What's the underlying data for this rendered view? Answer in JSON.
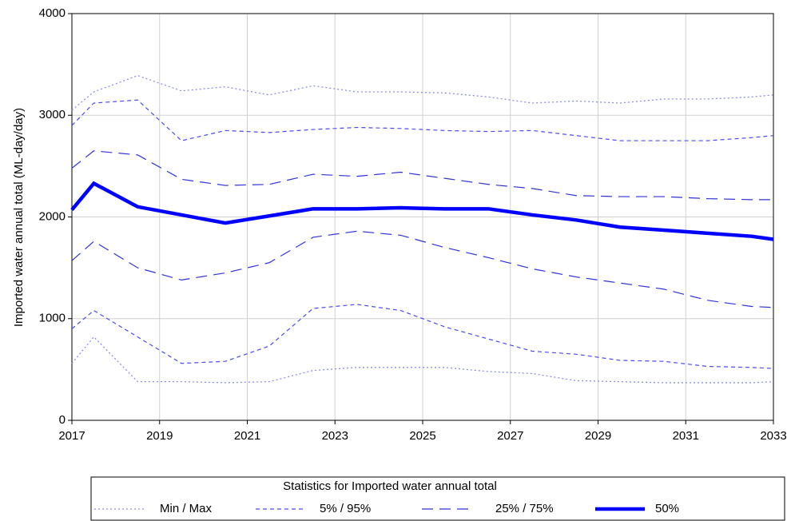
{
  "chart_data": {
    "type": "line",
    "y_label": "Imported water annual total (ML-day/day)",
    "legend_title": "Statistics for Imported water annual total",
    "x": [
      2017,
      2017.5,
      2018.5,
      2019.5,
      2020.5,
      2021.5,
      2022.5,
      2023.5,
      2024.5,
      2025.5,
      2026.5,
      2027.5,
      2028.5,
      2029.5,
      2030.5,
      2031.5,
      2032.5,
      2033
    ],
    "xlim": [
      2017,
      2033
    ],
    "xticks": [
      2017,
      2019,
      2021,
      2023,
      2025,
      2027,
      2029,
      2031,
      2033
    ],
    "ylim": [
      0,
      4000
    ],
    "yticks": [
      0,
      1000,
      2000,
      3000,
      4000
    ],
    "grid": true,
    "series": [
      {
        "name": "Min / Max",
        "color": "#8c8cf0",
        "dash": "dotted",
        "lower": [
          560,
          820,
          380,
          380,
          370,
          380,
          490,
          520,
          520,
          520,
          480,
          460,
          390,
          380,
          370,
          370,
          370,
          380
        ],
        "upper": [
          3050,
          3230,
          3390,
          3240,
          3280,
          3200,
          3290,
          3230,
          3230,
          3220,
          3180,
          3120,
          3140,
          3120,
          3160,
          3160,
          3180,
          3200
        ]
      },
      {
        "name": "5% / 95%",
        "color": "#4a4af0",
        "dash": "dashed",
        "lower": [
          900,
          1080,
          820,
          560,
          580,
          730,
          1100,
          1140,
          1080,
          920,
          800,
          680,
          650,
          590,
          580,
          530,
          520,
          510
        ],
        "upper": [
          2900,
          3120,
          3150,
          2750,
          2850,
          2830,
          2860,
          2880,
          2870,
          2850,
          2840,
          2850,
          2800,
          2750,
          2750,
          2750,
          2780,
          2800
        ]
      },
      {
        "name": "25% / 75%",
        "color": "#3030d8",
        "dash": "long-dashed",
        "lower": [
          1570,
          1760,
          1500,
          1380,
          1450,
          1550,
          1800,
          1860,
          1820,
          1700,
          1600,
          1490,
          1410,
          1350,
          1290,
          1180,
          1120,
          1110
        ],
        "upper": [
          2480,
          2650,
          2610,
          2370,
          2310,
          2320,
          2420,
          2400,
          2440,
          2380,
          2320,
          2280,
          2210,
          2200,
          2200,
          2180,
          2170,
          2170
        ]
      },
      {
        "name": "50%",
        "color": "#0000ff",
        "dash": "solid",
        "values": [
          2070,
          2330,
          2100,
          2020,
          1940,
          2010,
          2080,
          2080,
          2090,
          2080,
          2080,
          2020,
          1970,
          1900,
          1870,
          1840,
          1810,
          1780
        ]
      }
    ]
  }
}
